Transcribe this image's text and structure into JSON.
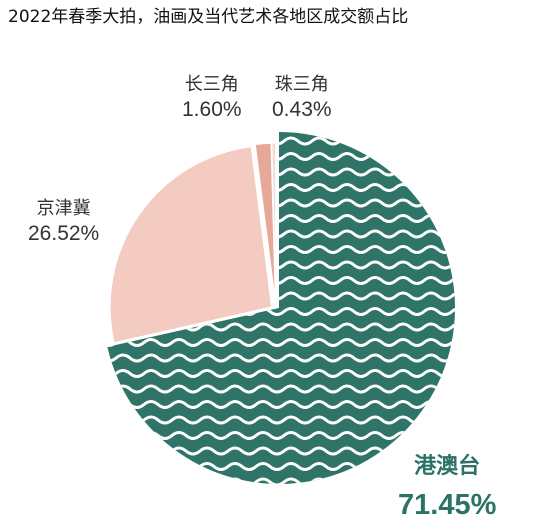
{
  "title": "2022年春季大拍，油画及当代艺术各地区成交额占比",
  "colors": {
    "teal": "#2f7468",
    "pink": "#f3cbc1",
    "salmon": "#e6a898",
    "light": "#f2ddd6",
    "text_teal": "#2c7266"
  },
  "chart_data": {
    "type": "pie",
    "title": "2022年春季大拍，油画及当代艺术各地区成交额占比",
    "slices": [
      {
        "label": "港澳台",
        "value": 71.45,
        "value_text": "71.45%",
        "color": "#2f7468",
        "pattern": "wave"
      },
      {
        "label": "京津冀",
        "value": 26.52,
        "value_text": "26.52%",
        "color": "#f3cbc1"
      },
      {
        "label": "长三角",
        "value": 1.6,
        "value_text": "1.60%",
        "color": "#e6a898"
      },
      {
        "label": "珠三角",
        "value": 0.43,
        "value_text": "0.43%",
        "color": "#f2ddd6"
      }
    ]
  }
}
